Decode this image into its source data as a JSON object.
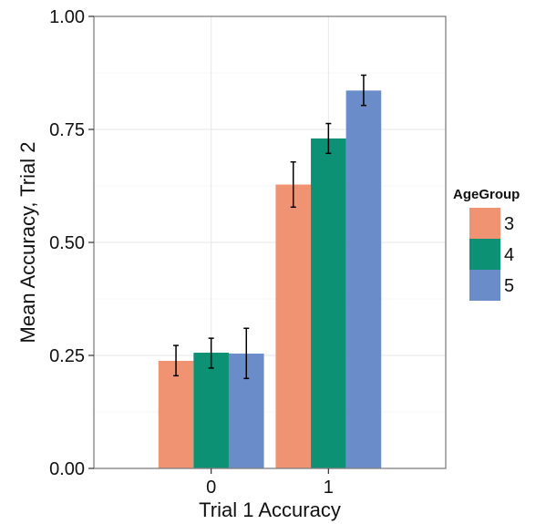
{
  "chart_data": {
    "type": "bar",
    "xlabel": "Trial 1 Accuracy",
    "ylabel": "Mean Accuracy, Trial 2",
    "categories": [
      "0",
      "1"
    ],
    "ylim": [
      0,
      1
    ],
    "yticks": [
      "0.00",
      "0.25",
      "0.50",
      "0.75",
      "1.00"
    ],
    "grid": true,
    "legend": {
      "title": "AgeGroup",
      "position": "right"
    },
    "series": [
      {
        "name": "3",
        "color": "#EF9373",
        "values": [
          0.238,
          0.628
        ],
        "err_low": [
          0.205,
          0.578
        ],
        "err_high": [
          0.272,
          0.678
        ]
      },
      {
        "name": "4",
        "color": "#0D9174",
        "values": [
          0.256,
          0.73
        ],
        "err_low": [
          0.222,
          0.697
        ],
        "err_high": [
          0.288,
          0.763
        ]
      },
      {
        "name": "5",
        "color": "#6A8CC8",
        "values": [
          0.254,
          0.836
        ],
        "err_low": [
          0.199,
          0.803
        ],
        "err_high": [
          0.31,
          0.87
        ]
      }
    ]
  }
}
